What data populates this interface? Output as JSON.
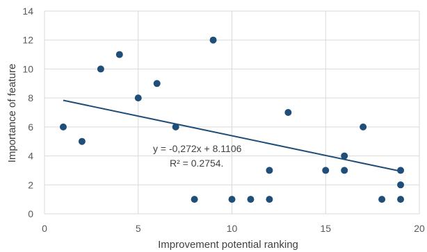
{
  "chart_data": {
    "type": "scatter",
    "title": "",
    "xlabel": "Improvement potential ranking",
    "ylabel": "Importance of feature",
    "xlim": [
      0,
      20
    ],
    "ylim": [
      0,
      14
    ],
    "x_ticks": [
      0,
      5,
      10,
      15,
      20
    ],
    "y_ticks": [
      0,
      2,
      4,
      6,
      8,
      10,
      12,
      14
    ],
    "grid": true,
    "legend": "none",
    "series": [
      {
        "points": [
          {
            "x": 1,
            "y": 6
          },
          {
            "x": 2,
            "y": 5
          },
          {
            "x": 3,
            "y": 10
          },
          {
            "x": 4,
            "y": 11
          },
          {
            "x": 5,
            "y": 8
          },
          {
            "x": 6,
            "y": 9
          },
          {
            "x": 7,
            "y": 6
          },
          {
            "x": 8,
            "y": 1
          },
          {
            "x": 9,
            "y": 12
          },
          {
            "x": 10,
            "y": 1
          },
          {
            "x": 11,
            "y": 1
          },
          {
            "x": 12,
            "y": 1
          },
          {
            "x": 12,
            "y": 3
          },
          {
            "x": 13,
            "y": 7
          },
          {
            "x": 15,
            "y": 3
          },
          {
            "x": 16,
            "y": 3
          },
          {
            "x": 16,
            "y": 4
          },
          {
            "x": 17,
            "y": 6
          },
          {
            "x": 18,
            "y": 1
          },
          {
            "x": 19,
            "y": 1
          },
          {
            "x": 19,
            "y": 2
          },
          {
            "x": 19,
            "y": 3
          }
        ]
      }
    ],
    "trendline": {
      "type": "linear",
      "slope": -0.272,
      "intercept": 8.1106,
      "x_range": [
        1,
        19
      ],
      "equation_label": "y = -0,272x + 8.1106",
      "r2_label": "R² = 0.2754."
    },
    "colors": {
      "marker": "#1f4e79",
      "trendline": "#1f4e79",
      "grid": "#d9d9d9",
      "tick_text": "#595959"
    }
  }
}
